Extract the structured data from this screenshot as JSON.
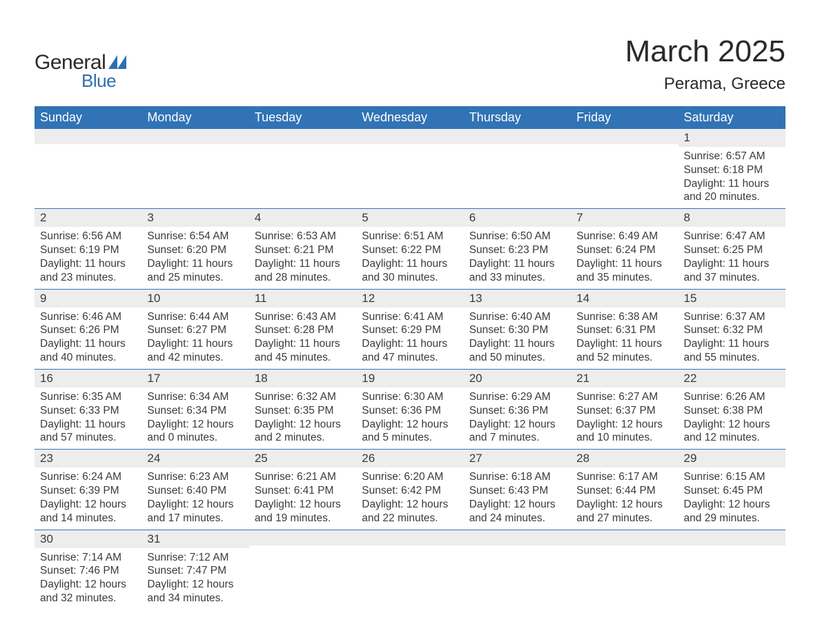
{
  "logo": {
    "text1": "General",
    "text2": "Blue",
    "tri_color": "#2f6fb0"
  },
  "title": {
    "month": "March 2025",
    "location": "Perama, Greece"
  },
  "colors": {
    "header_bg": "#3173b5",
    "header_text": "#ffffff",
    "daynum_bg": "#ededed",
    "row_border": "#3173b5",
    "text": "#3a3a3a",
    "page_bg": "#ffffff"
  },
  "weekdays": [
    "Sunday",
    "Monday",
    "Tuesday",
    "Wednesday",
    "Thursday",
    "Friday",
    "Saturday"
  ],
  "weeks": [
    [
      null,
      null,
      null,
      null,
      null,
      null,
      {
        "n": "1",
        "sunrise": "6:57 AM",
        "sunset": "6:18 PM",
        "dl": "11 hours and 20 minutes."
      }
    ],
    [
      {
        "n": "2",
        "sunrise": "6:56 AM",
        "sunset": "6:19 PM",
        "dl": "11 hours and 23 minutes."
      },
      {
        "n": "3",
        "sunrise": "6:54 AM",
        "sunset": "6:20 PM",
        "dl": "11 hours and 25 minutes."
      },
      {
        "n": "4",
        "sunrise": "6:53 AM",
        "sunset": "6:21 PM",
        "dl": "11 hours and 28 minutes."
      },
      {
        "n": "5",
        "sunrise": "6:51 AM",
        "sunset": "6:22 PM",
        "dl": "11 hours and 30 minutes."
      },
      {
        "n": "6",
        "sunrise": "6:50 AM",
        "sunset": "6:23 PM",
        "dl": "11 hours and 33 minutes."
      },
      {
        "n": "7",
        "sunrise": "6:49 AM",
        "sunset": "6:24 PM",
        "dl": "11 hours and 35 minutes."
      },
      {
        "n": "8",
        "sunrise": "6:47 AM",
        "sunset": "6:25 PM",
        "dl": "11 hours and 37 minutes."
      }
    ],
    [
      {
        "n": "9",
        "sunrise": "6:46 AM",
        "sunset": "6:26 PM",
        "dl": "11 hours and 40 minutes."
      },
      {
        "n": "10",
        "sunrise": "6:44 AM",
        "sunset": "6:27 PM",
        "dl": "11 hours and 42 minutes."
      },
      {
        "n": "11",
        "sunrise": "6:43 AM",
        "sunset": "6:28 PM",
        "dl": "11 hours and 45 minutes."
      },
      {
        "n": "12",
        "sunrise": "6:41 AM",
        "sunset": "6:29 PM",
        "dl": "11 hours and 47 minutes."
      },
      {
        "n": "13",
        "sunrise": "6:40 AM",
        "sunset": "6:30 PM",
        "dl": "11 hours and 50 minutes."
      },
      {
        "n": "14",
        "sunrise": "6:38 AM",
        "sunset": "6:31 PM",
        "dl": "11 hours and 52 minutes."
      },
      {
        "n": "15",
        "sunrise": "6:37 AM",
        "sunset": "6:32 PM",
        "dl": "11 hours and 55 minutes."
      }
    ],
    [
      {
        "n": "16",
        "sunrise": "6:35 AM",
        "sunset": "6:33 PM",
        "dl": "11 hours and 57 minutes."
      },
      {
        "n": "17",
        "sunrise": "6:34 AM",
        "sunset": "6:34 PM",
        "dl": "12 hours and 0 minutes."
      },
      {
        "n": "18",
        "sunrise": "6:32 AM",
        "sunset": "6:35 PM",
        "dl": "12 hours and 2 minutes."
      },
      {
        "n": "19",
        "sunrise": "6:30 AM",
        "sunset": "6:36 PM",
        "dl": "12 hours and 5 minutes."
      },
      {
        "n": "20",
        "sunrise": "6:29 AM",
        "sunset": "6:36 PM",
        "dl": "12 hours and 7 minutes."
      },
      {
        "n": "21",
        "sunrise": "6:27 AM",
        "sunset": "6:37 PM",
        "dl": "12 hours and 10 minutes."
      },
      {
        "n": "22",
        "sunrise": "6:26 AM",
        "sunset": "6:38 PM",
        "dl": "12 hours and 12 minutes."
      }
    ],
    [
      {
        "n": "23",
        "sunrise": "6:24 AM",
        "sunset": "6:39 PM",
        "dl": "12 hours and 14 minutes."
      },
      {
        "n": "24",
        "sunrise": "6:23 AM",
        "sunset": "6:40 PM",
        "dl": "12 hours and 17 minutes."
      },
      {
        "n": "25",
        "sunrise": "6:21 AM",
        "sunset": "6:41 PM",
        "dl": "12 hours and 19 minutes."
      },
      {
        "n": "26",
        "sunrise": "6:20 AM",
        "sunset": "6:42 PM",
        "dl": "12 hours and 22 minutes."
      },
      {
        "n": "27",
        "sunrise": "6:18 AM",
        "sunset": "6:43 PM",
        "dl": "12 hours and 24 minutes."
      },
      {
        "n": "28",
        "sunrise": "6:17 AM",
        "sunset": "6:44 PM",
        "dl": "12 hours and 27 minutes."
      },
      {
        "n": "29",
        "sunrise": "6:15 AM",
        "sunset": "6:45 PM",
        "dl": "12 hours and 29 minutes."
      }
    ],
    [
      {
        "n": "30",
        "sunrise": "7:14 AM",
        "sunset": "7:46 PM",
        "dl": "12 hours and 32 minutes."
      },
      {
        "n": "31",
        "sunrise": "7:12 AM",
        "sunset": "7:47 PM",
        "dl": "12 hours and 34 minutes."
      },
      null,
      null,
      null,
      null,
      null
    ]
  ],
  "labels": {
    "sunrise": "Sunrise: ",
    "sunset": "Sunset: ",
    "daylight": "Daylight: "
  }
}
